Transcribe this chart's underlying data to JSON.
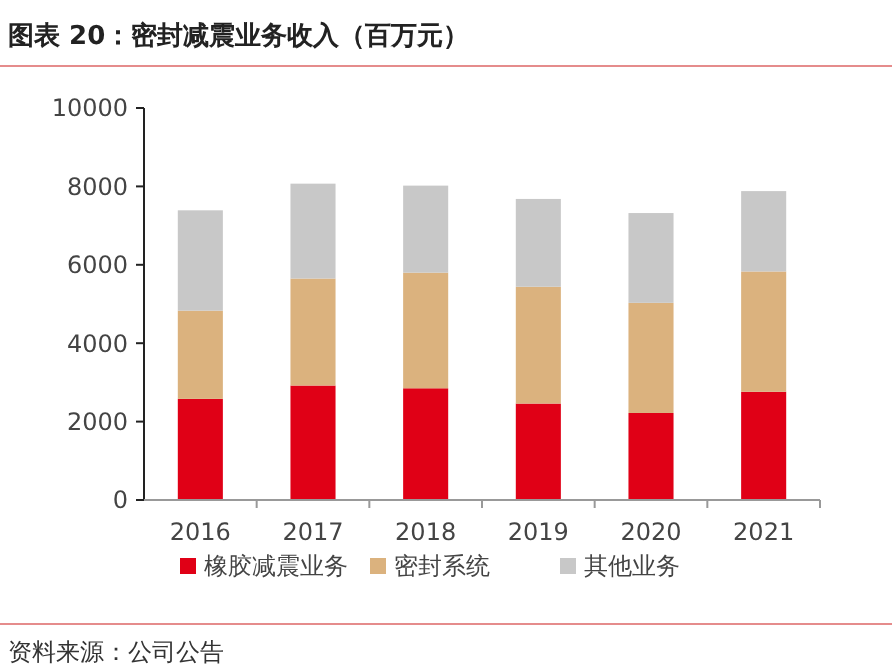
{
  "chart_data": {
    "type": "bar",
    "stacked": true,
    "title": "图表 20：密封减震业务收入（百万元）",
    "categories": [
      "2016",
      "2017",
      "2018",
      "2019",
      "2020",
      "2021"
    ],
    "series": [
      {
        "name": "橡胶减震业务",
        "color": "#e00016",
        "values": [
          2580,
          2920,
          2850,
          2460,
          2220,
          2760
        ]
      },
      {
        "name": "密封系统",
        "color": "#dbb27e",
        "values": [
          2250,
          2730,
          2950,
          2980,
          2810,
          3070
        ]
      },
      {
        "name": "其他业务",
        "color": "#c8c8c8",
        "values": [
          2560,
          2420,
          2220,
          2240,
          2290,
          2050
        ]
      }
    ],
    "ylim": [
      0,
      10000
    ],
    "yticks": [
      0,
      2000,
      4000,
      6000,
      8000,
      10000
    ],
    "grid": false,
    "legend": "bottom",
    "annotations": [
      "资料来源：公司公告"
    ]
  }
}
